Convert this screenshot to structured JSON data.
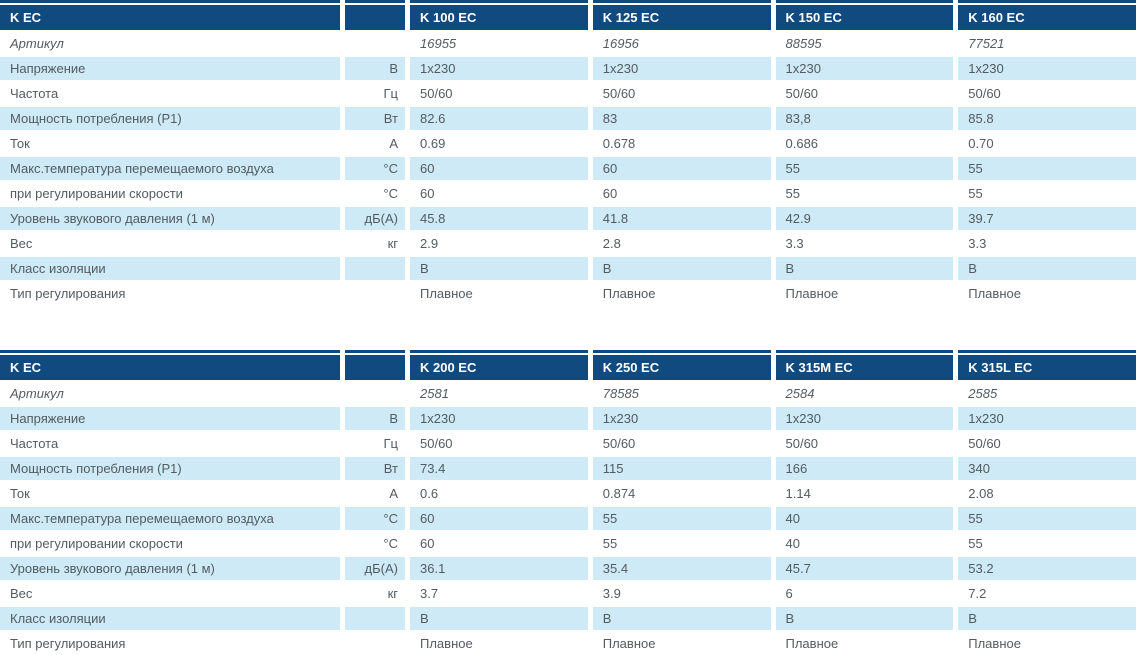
{
  "colors": {
    "header_bg": "#114a7e",
    "row_alt_bg": "#cdeaf6",
    "header_text": "#ffffff",
    "body_text": "#535b60"
  },
  "tables": [
    {
      "title": "K EC",
      "columns": [
        "K 100 EC",
        "K 125 EC",
        "K 150 EC",
        "K 160 EC"
      ],
      "rows": [
        {
          "label": "Артикул",
          "unit": "",
          "italic": true,
          "values": [
            "16955",
            "16956",
            "88595",
            "77521"
          ]
        },
        {
          "label": "Напряжение",
          "unit": "В",
          "values": [
            "1x230",
            "1x230",
            "1x230",
            "1x230"
          ]
        },
        {
          "label": "Частота",
          "unit": "Гц",
          "values": [
            "50/60",
            "50/60",
            "50/60",
            "50/60"
          ]
        },
        {
          "label": "Мощность потребления (P1)",
          "unit": "Вт",
          "values": [
            "82.6",
            "83",
            "83,8",
            "85.8"
          ]
        },
        {
          "label": "Ток",
          "unit": "А",
          "values": [
            "0.69",
            "0.678",
            "0.686",
            "0.70"
          ]
        },
        {
          "label": "Макс.температура перемещаемого воздуха",
          "unit": "°C",
          "values": [
            "60",
            "60",
            "55",
            "55"
          ]
        },
        {
          "label": "при регулировании скорости",
          "unit": "°C",
          "values": [
            "60",
            "60",
            "55",
            "55"
          ]
        },
        {
          "label": "Уровень звукового давления (1 м)",
          "unit": "дБ(А)",
          "values": [
            "45.8",
            "41.8",
            "42.9",
            "39.7"
          ]
        },
        {
          "label": "Вес",
          "unit": "кг",
          "values": [
            "2.9",
            "2.8",
            "3.3",
            "3.3"
          ]
        },
        {
          "label": "Класс изоляции",
          "unit": "",
          "values": [
            "B",
            "B",
            "B",
            "B"
          ]
        },
        {
          "label": "Тип регулирования",
          "unit": "",
          "values": [
            "Плавное",
            "Плавное",
            "Плавное",
            "Плавное"
          ]
        }
      ]
    },
    {
      "title": "K EC",
      "columns": [
        "K 200 EC",
        "K 250 EC",
        "K 315M EC",
        "K 315L EC"
      ],
      "rows": [
        {
          "label": "Артикул",
          "unit": "",
          "italic": true,
          "values": [
            "2581",
            "78585",
            "2584",
            "2585"
          ]
        },
        {
          "label": "Напряжение",
          "unit": "В",
          "values": [
            "1x230",
            "1x230",
            "1x230",
            "1x230"
          ]
        },
        {
          "label": "Частота",
          "unit": "Гц",
          "values": [
            "50/60",
            "50/60",
            "50/60",
            "50/60"
          ]
        },
        {
          "label": "Мощность потребления (P1)",
          "unit": "Вт",
          "values": [
            "73.4",
            "115",
            "166",
            "340"
          ]
        },
        {
          "label": "Ток",
          "unit": "А",
          "values": [
            "0.6",
            "0.874",
            "1.14",
            "2.08"
          ]
        },
        {
          "label": "Макс.температура перемещаемого воздуха",
          "unit": "°C",
          "values": [
            "60",
            "55",
            "40",
            "55"
          ]
        },
        {
          "label": "при регулировании скорости",
          "unit": "°C",
          "values": [
            "60",
            "55",
            "40",
            "55"
          ]
        },
        {
          "label": "Уровень звукового давления (1 м)",
          "unit": "дБ(А)",
          "values": [
            "36.1",
            "35.4",
            "45.7",
            "53.2"
          ]
        },
        {
          "label": "Вес",
          "unit": "кг",
          "values": [
            "3.7",
            "3.9",
            "6",
            "7.2"
          ]
        },
        {
          "label": "Класс изоляции",
          "unit": "",
          "values": [
            "B",
            "B",
            "B",
            "B"
          ]
        },
        {
          "label": "Тип регулирования",
          "unit": "",
          "values": [
            "Плавное",
            "Плавное",
            "Плавное",
            "Плавное"
          ]
        }
      ]
    }
  ]
}
